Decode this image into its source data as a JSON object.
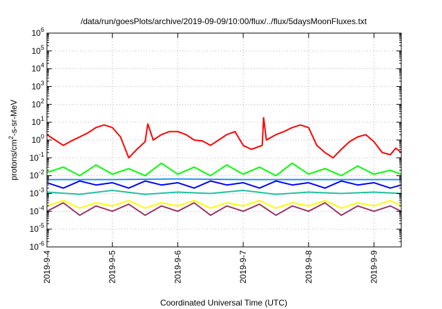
{
  "chart_data": {
    "type": "line",
    "title": "/data/run/goesPlots/archive/2019-09-09/10:00/flux/../flux/5daysMoonFluxes.txt",
    "xlabel": "Coordinated Universal Time (UTC)",
    "ylabel": "protons/cm2-s-sr-MeV",
    "yscale": "log",
    "ylim": [
      1e-06,
      1000000.0
    ],
    "xlim": [
      "2019-09-04",
      "2019-09-09 10:00"
    ],
    "grid": true,
    "legend": "none",
    "x_tick_labels": [
      "2019-9-4",
      "2019-9-5",
      "2019-9-6",
      "2019-9-7",
      "2019-9-8",
      "2019-9-9"
    ],
    "y_tick_labels": [
      {
        "base": "10",
        "exp": "-6"
      },
      {
        "base": "10",
        "exp": "-5"
      },
      {
        "base": "10",
        "exp": "-4"
      },
      {
        "base": "10",
        "exp": "-3"
      },
      {
        "base": "10",
        "exp": "-2"
      },
      {
        "base": "10",
        "exp": "-1"
      },
      {
        "base": "10",
        "exp": "0"
      },
      {
        "base": "10",
        "exp": "1"
      },
      {
        "base": "10",
        "exp": "2"
      },
      {
        "base": "10",
        "exp": "3"
      },
      {
        "base": "10",
        "exp": "4"
      },
      {
        "base": "10",
        "exp": "5"
      },
      {
        "base": "10",
        "exp": "6"
      }
    ],
    "series": [
      {
        "color": "#ff0000",
        "values": [
          [
            "2019-09-04 00:00",
            2.0
          ],
          [
            "2019-09-04 03:00",
            1.0
          ],
          [
            "2019-09-04 06:00",
            0.5
          ],
          [
            "2019-09-04 09:00",
            0.9
          ],
          [
            "2019-09-04 12:00",
            1.5
          ],
          [
            "2019-09-04 15:00",
            2.5
          ],
          [
            "2019-09-04 18:00",
            5.0
          ],
          [
            "2019-09-04 21:00",
            7.0
          ],
          [
            "2019-09-05 00:00",
            5.0
          ],
          [
            "2019-09-05 03:00",
            1.5
          ],
          [
            "2019-09-05 06:00",
            0.1
          ],
          [
            "2019-09-05 09:00",
            0.3
          ],
          [
            "2019-09-05 12:00",
            0.8
          ],
          [
            "2019-09-05 13:00",
            8.0
          ],
          [
            "2019-09-05 15:00",
            1.0
          ],
          [
            "2019-09-05 18:00",
            2.0
          ],
          [
            "2019-09-05 21:00",
            3.0
          ],
          [
            "2019-09-06 00:00",
            3.0
          ],
          [
            "2019-09-06 03:00",
            2.0
          ],
          [
            "2019-09-06 06:00",
            1.0
          ],
          [
            "2019-09-06 09:00",
            0.9
          ],
          [
            "2019-09-06 12:00",
            0.5
          ],
          [
            "2019-09-06 15:00",
            1.0
          ],
          [
            "2019-09-06 18:00",
            2.0
          ],
          [
            "2019-09-06 21:00",
            3.0
          ],
          [
            "2019-09-07 00:00",
            0.5
          ],
          [
            "2019-09-07 03:00",
            0.3
          ],
          [
            "2019-09-07 07:00",
            0.5
          ],
          [
            "2019-09-07 07:30",
            18.0
          ],
          [
            "2019-09-07 08:30",
            1.0
          ],
          [
            "2019-09-07 12:00",
            2.0
          ],
          [
            "2019-09-07 15:00",
            3.0
          ],
          [
            "2019-09-07 18:00",
            5.0
          ],
          [
            "2019-09-07 21:00",
            7.0
          ],
          [
            "2019-09-08 00:00",
            5.0
          ],
          [
            "2019-09-08 03:00",
            0.5
          ],
          [
            "2019-09-08 06:00",
            0.2
          ],
          [
            "2019-09-08 09:00",
            0.1
          ],
          [
            "2019-09-08 12:00",
            0.3
          ],
          [
            "2019-09-08 15:00",
            0.8
          ],
          [
            "2019-09-08 18:00",
            1.5
          ],
          [
            "2019-09-08 21:00",
            2.0
          ],
          [
            "2019-09-09 00:00",
            0.8
          ],
          [
            "2019-09-09 03:00",
            0.2
          ],
          [
            "2019-09-09 06:00",
            0.15
          ],
          [
            "2019-09-09 08:00",
            0.35
          ],
          [
            "2019-09-09 10:00",
            0.2
          ]
        ]
      },
      {
        "color": "#00ff00",
        "values": [
          [
            "2019-09-04 00:00",
            0.015
          ],
          [
            "2019-09-04 06:00",
            0.03
          ],
          [
            "2019-09-04 12:00",
            0.01
          ],
          [
            "2019-09-04 18:00",
            0.04
          ],
          [
            "2019-09-05 00:00",
            0.012
          ],
          [
            "2019-09-05 06:00",
            0.025
          ],
          [
            "2019-09-05 12:00",
            0.01
          ],
          [
            "2019-09-05 18:00",
            0.05
          ],
          [
            "2019-09-06 00:00",
            0.012
          ],
          [
            "2019-09-06 06:00",
            0.03
          ],
          [
            "2019-09-06 12:00",
            0.01
          ],
          [
            "2019-09-06 18:00",
            0.04
          ],
          [
            "2019-09-07 00:00",
            0.012
          ],
          [
            "2019-09-07 06:00",
            0.03
          ],
          [
            "2019-09-07 12:00",
            0.01
          ],
          [
            "2019-09-07 18:00",
            0.05
          ],
          [
            "2019-09-08 00:00",
            0.012
          ],
          [
            "2019-09-08 06:00",
            0.025
          ],
          [
            "2019-09-08 12:00",
            0.01
          ],
          [
            "2019-09-08 18:00",
            0.035
          ],
          [
            "2019-09-09 00:00",
            0.012
          ],
          [
            "2019-09-09 06:00",
            0.02
          ],
          [
            "2019-09-09 10:00",
            0.012
          ]
        ]
      },
      {
        "color": "#0000ff",
        "values": [
          [
            "2019-09-04 00:00",
            0.004
          ],
          [
            "2019-09-04 06:00",
            0.002
          ],
          [
            "2019-09-04 12:00",
            0.005
          ],
          [
            "2019-09-04 18:00",
            0.003
          ],
          [
            "2019-09-05 00:00",
            0.004
          ],
          [
            "2019-09-05 06:00",
            0.002
          ],
          [
            "2019-09-05 12:00",
            0.005
          ],
          [
            "2019-09-05 18:00",
            0.003
          ],
          [
            "2019-09-06 00:00",
            0.004
          ],
          [
            "2019-09-06 06:00",
            0.002
          ],
          [
            "2019-09-06 12:00",
            0.005
          ],
          [
            "2019-09-06 18:00",
            0.003
          ],
          [
            "2019-09-07 00:00",
            0.004
          ],
          [
            "2019-09-07 06:00",
            0.002
          ],
          [
            "2019-09-07 12:00",
            0.005
          ],
          [
            "2019-09-07 18:00",
            0.003
          ],
          [
            "2019-09-08 00:00",
            0.004
          ],
          [
            "2019-09-08 06:00",
            0.002
          ],
          [
            "2019-09-08 12:00",
            0.005
          ],
          [
            "2019-09-08 18:00",
            0.003
          ],
          [
            "2019-09-09 00:00",
            0.004
          ],
          [
            "2019-09-09 06:00",
            0.002
          ],
          [
            "2019-09-09 10:00",
            0.003
          ]
        ]
      },
      {
        "color": "#1e90ff",
        "values": [
          [
            "2019-09-04 00:00",
            0.006
          ],
          [
            "2019-09-05 00:00",
            0.006
          ],
          [
            "2019-09-06 00:00",
            0.0065
          ],
          [
            "2019-09-07 00:00",
            0.006
          ],
          [
            "2019-09-08 00:00",
            0.006
          ],
          [
            "2019-09-09 00:00",
            0.006
          ],
          [
            "2019-09-09 10:00",
            0.006
          ]
        ]
      },
      {
        "color": "#20c0a0",
        "values": [
          [
            "2019-09-04 00:00",
            0.0012
          ],
          [
            "2019-09-04 12:00",
            0.0009
          ],
          [
            "2019-09-05 00:00",
            0.0015
          ],
          [
            "2019-09-05 12:00",
            0.0009
          ],
          [
            "2019-09-06 00:00",
            0.0012
          ],
          [
            "2019-09-06 12:00",
            0.001
          ],
          [
            "2019-09-07 00:00",
            0.0015
          ],
          [
            "2019-09-07 12:00",
            0.0009
          ],
          [
            "2019-09-08 00:00",
            0.0012
          ],
          [
            "2019-09-08 12:00",
            0.001
          ],
          [
            "2019-09-09 00:00",
            0.0012
          ],
          [
            "2019-09-09 10:00",
            0.001
          ]
        ]
      },
      {
        "color": "#ffff00",
        "values": [
          [
            "2019-09-04 00:00",
            0.0002
          ],
          [
            "2019-09-04 06:00",
            0.0004
          ],
          [
            "2019-09-04 12:00",
            0.00015
          ],
          [
            "2019-09-04 18:00",
            0.0003
          ],
          [
            "2019-09-05 00:00",
            0.0002
          ],
          [
            "2019-09-05 06:00",
            0.0004
          ],
          [
            "2019-09-05 12:00",
            0.00015
          ],
          [
            "2019-09-05 18:00",
            0.0003
          ],
          [
            "2019-09-06 00:00",
            0.0002
          ],
          [
            "2019-09-06 06:00",
            0.0004
          ],
          [
            "2019-09-06 12:00",
            0.00015
          ],
          [
            "2019-09-06 18:00",
            0.0003
          ],
          [
            "2019-09-07 00:00",
            0.0002
          ],
          [
            "2019-09-07 06:00",
            0.0004
          ],
          [
            "2019-09-07 12:00",
            0.00015
          ],
          [
            "2019-09-07 18:00",
            0.0003
          ],
          [
            "2019-09-08 00:00",
            0.0002
          ],
          [
            "2019-09-08 06:00",
            0.0004
          ],
          [
            "2019-09-08 12:00",
            0.00015
          ],
          [
            "2019-09-08 18:00",
            0.0003
          ],
          [
            "2019-09-09 00:00",
            0.0002
          ],
          [
            "2019-09-09 06:00",
            0.0004
          ],
          [
            "2019-09-09 10:00",
            0.0002
          ]
        ]
      },
      {
        "color": "#993366",
        "values": [
          [
            "2019-09-04 00:00",
            0.0001
          ],
          [
            "2019-09-04 06:00",
            0.0003
          ],
          [
            "2019-09-04 12:00",
            6e-05
          ],
          [
            "2019-09-04 18:00",
            0.0002
          ],
          [
            "2019-09-05 00:00",
            0.0001
          ],
          [
            "2019-09-05 06:00",
            0.00025
          ],
          [
            "2019-09-05 12:00",
            6e-05
          ],
          [
            "2019-09-05 18:00",
            0.0002
          ],
          [
            "2019-09-06 00:00",
            0.0001
          ],
          [
            "2019-09-06 06:00",
            0.0003
          ],
          [
            "2019-09-06 12:00",
            6e-05
          ],
          [
            "2019-09-06 18:00",
            0.0002
          ],
          [
            "2019-09-07 00:00",
            0.0001
          ],
          [
            "2019-09-07 06:00",
            0.00025
          ],
          [
            "2019-09-07 12:00",
            6e-05
          ],
          [
            "2019-09-07 18:00",
            0.0002
          ],
          [
            "2019-09-08 00:00",
            0.0001
          ],
          [
            "2019-09-08 06:00",
            0.0003
          ],
          [
            "2019-09-08 12:00",
            6e-05
          ],
          [
            "2019-09-08 18:00",
            0.0002
          ],
          [
            "2019-09-09 00:00",
            0.0001
          ],
          [
            "2019-09-09 06:00",
            0.0002
          ],
          [
            "2019-09-09 10:00",
            0.0001
          ]
        ]
      }
    ]
  }
}
